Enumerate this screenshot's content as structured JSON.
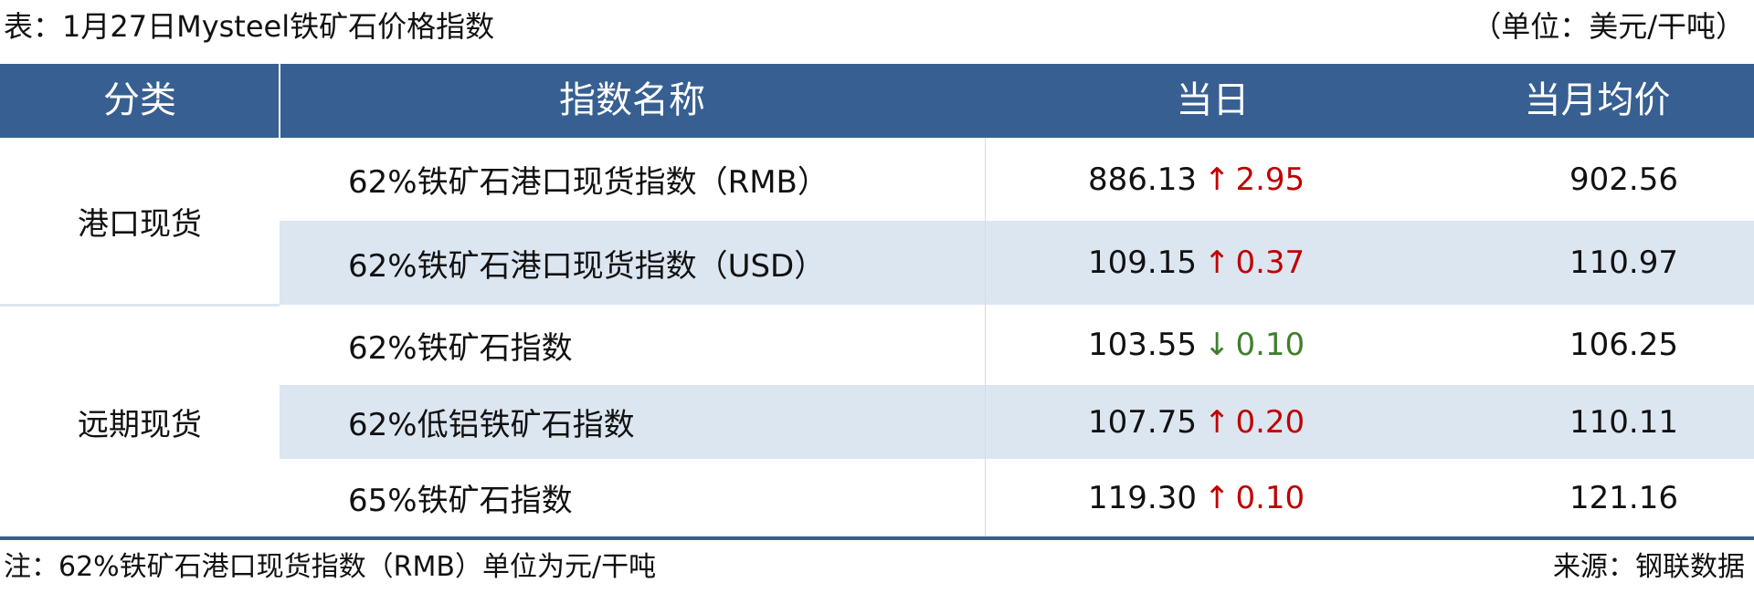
{
  "title": "表：1月27日Mysteel铁矿石价格指数",
  "unit": "（单位：美元/干吨）",
  "headers": [
    "分类",
    "指数名称",
    "当日",
    "当月均价"
  ],
  "colors": {
    "header": "#375f91",
    "stripe": "#dce6f1",
    "up": "#c00000",
    "down": "#3f7f2f"
  },
  "groups": [
    {
      "label": "港口现货"
    },
    {
      "label": "远期现货"
    }
  ],
  "rows": [
    {
      "name": "62%铁矿石港口现货指数（RMB）",
      "value": "886.13",
      "arrow": "↑",
      "change": "2.95",
      "dir": "up",
      "avg": "902.56"
    },
    {
      "name": "62%铁矿石港口现货指数（USD）",
      "value": "109.15",
      "arrow": "↑",
      "change": "0.37",
      "dir": "up",
      "avg": "110.97"
    },
    {
      "name": "62%铁矿石指数",
      "value": "103.55",
      "arrow": "↓",
      "change": "0.10",
      "dir": "down",
      "avg": "106.25"
    },
    {
      "name": "62%低铝铁矿石指数",
      "value": "107.75",
      "arrow": "↑",
      "change": "0.20",
      "dir": "up",
      "avg": "110.11"
    },
    {
      "name": "65%铁矿石指数",
      "value": "119.30",
      "arrow": "↑",
      "change": "0.10",
      "dir": "up",
      "avg": "121.16"
    }
  ],
  "footnote": "注：62%铁矿石港口现货指数（RMB）单位为元/干吨",
  "source": "来源：钢联数据"
}
